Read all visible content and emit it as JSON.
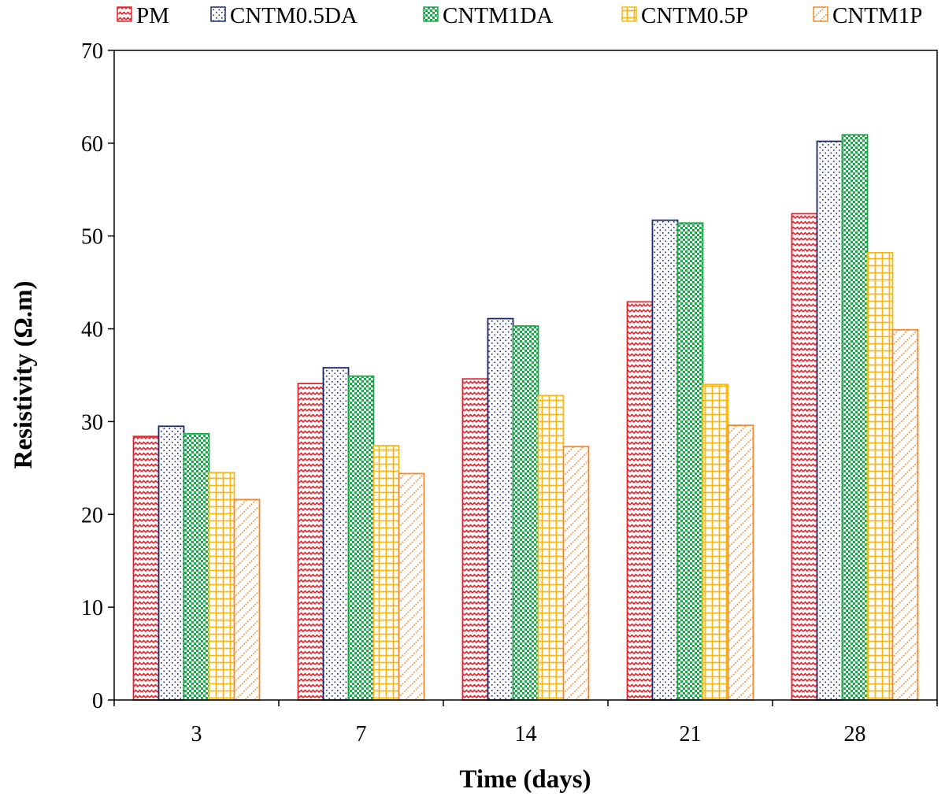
{
  "chart_data": {
    "type": "bar",
    "title": "",
    "xlabel": "Time (days)",
    "ylabel": "Resistivity (Ω.m)",
    "ylim": [
      0,
      70
    ],
    "yticks": [
      "0",
      "10",
      "20",
      "30",
      "40",
      "50",
      "60",
      "70"
    ],
    "categories": [
      "3",
      "7",
      "14",
      "21",
      "28"
    ],
    "legend_position": "top",
    "grid": false,
    "series": [
      {
        "name": "PM",
        "color": "#e8222b",
        "pattern": "wave",
        "values": [
          28.4,
          34.1,
          34.6,
          42.9,
          52.4
        ]
      },
      {
        "name": "CNTM0.5DA",
        "color": "#1b2a6b",
        "pattern": "dots",
        "values": [
          29.5,
          35.8,
          41.1,
          51.7,
          60.2
        ]
      },
      {
        "name": "CNTM1DA",
        "color": "#1fa64a",
        "pattern": "checker",
        "values": [
          28.7,
          34.9,
          40.3,
          51.4,
          60.9
        ]
      },
      {
        "name": "CNTM0.5P",
        "color": "#f5b915",
        "pattern": "grid",
        "values": [
          24.5,
          27.4,
          32.8,
          34.0,
          48.2
        ]
      },
      {
        "name": "CNTM1P",
        "color": "#f08a2c",
        "pattern": "diagonal",
        "values": [
          21.6,
          24.4,
          27.3,
          29.6,
          39.9
        ]
      }
    ]
  }
}
